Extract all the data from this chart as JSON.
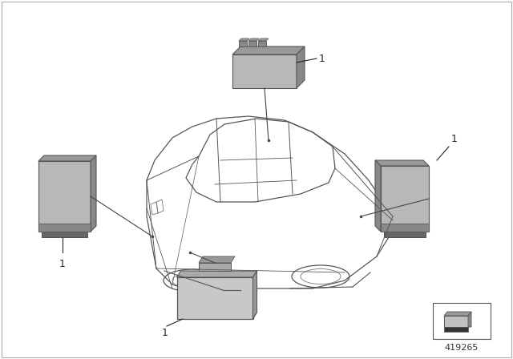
{
  "background_color": "#ffffff",
  "part_number": "419265",
  "fig_width": 6.4,
  "fig_height": 4.48,
  "dpi": 100,
  "car_color": "#555555",
  "sensor_face_color": "#b8b8b8",
  "sensor_top_color": "#999999",
  "sensor_right_color": "#888888",
  "sensor_dark_color": "#555555",
  "line_color": "#444444",
  "label_color": "#222222"
}
